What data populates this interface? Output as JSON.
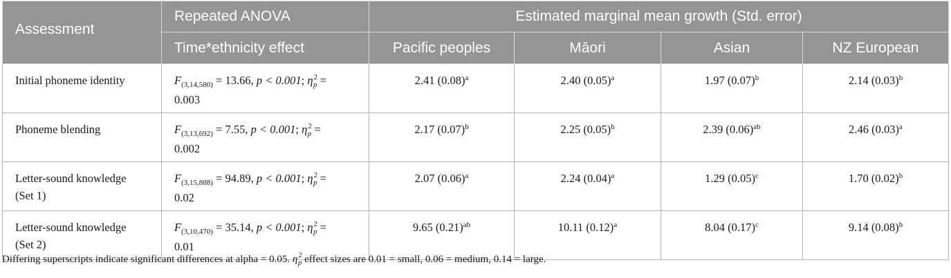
{
  "header": {
    "assessment": "Assessment",
    "anova_group": "Repeated ANOVA",
    "anova_sub": "Time*ethnicity effect",
    "growth_group": "Estimated marginal mean growth (Std. error)",
    "groups": [
      "Pacific peoples",
      "Māori",
      "Asian",
      "NZ European"
    ]
  },
  "rows": [
    {
      "assessment_l1": "Initial phoneme identity",
      "assessment_l2": "",
      "F_sub": "(3,14,580)",
      "F_value": "13.66",
      "p": "p < 0.001",
      "eta_value": "0.003",
      "cells": [
        {
          "value": "2.41 (0.08)",
          "sup": "a"
        },
        {
          "value": "2.40 (0.05)",
          "sup": "a"
        },
        {
          "value": "1.97 (0.07)",
          "sup": "b"
        },
        {
          "value": "2.14 (0.03)",
          "sup": "b"
        }
      ]
    },
    {
      "assessment_l1": "Phoneme blending",
      "assessment_l2": "",
      "F_sub": "(3,13,692)",
      "F_value": "7.55",
      "p": "p < 0.001",
      "eta_value": "0.002",
      "cells": [
        {
          "value": "2.17 (0.07)",
          "sup": "b"
        },
        {
          "value": "2.25 (0.05)",
          "sup": "b"
        },
        {
          "value": "2.39 (0.06)",
          "sup": "ab"
        },
        {
          "value": "2.46 (0.03)",
          "sup": "a"
        }
      ]
    },
    {
      "assessment_l1": "Letter-sound knowledge",
      "assessment_l2": "(Set 1)",
      "F_sub": "(3,15,888)",
      "F_value": "94.89",
      "p": "p < 0.001",
      "eta_value": "0.02",
      "cells": [
        {
          "value": "2.07 (0.06)",
          "sup": "a"
        },
        {
          "value": "2.24 (0.04)",
          "sup": "a"
        },
        {
          "value": "1.29 (0.05)",
          "sup": "c"
        },
        {
          "value": "1.70 (0.02)",
          "sup": "b"
        }
      ]
    },
    {
      "assessment_l1": "Letter-sound knowledge",
      "assessment_l2": "(Set 2)",
      "F_sub": "(3,10,470)",
      "F_value": "35.14",
      "p": "p < 0.001",
      "eta_value": "0.01",
      "cells": [
        {
          "value": "9.65 (0.21)",
          "sup": "ab"
        },
        {
          "value": "10.11 (0.12)",
          "sup": "a"
        },
        {
          "value": "8.04 (0.17)",
          "sup": "c"
        },
        {
          "value": "9.14 (0.08)",
          "sup": "b"
        }
      ]
    }
  ],
  "symbols": {
    "F": "F",
    "eta": "η",
    "eta_sup": "2",
    "eta_sub": "p",
    "equals": " = ",
    "sep": "; "
  },
  "footnote": {
    "pre": "Differing superscripts indicate significant differences at alpha = 0.05. ",
    "post": " effect sizes are 0.01 = small, 0.06 = medium, 0.14 = large."
  }
}
